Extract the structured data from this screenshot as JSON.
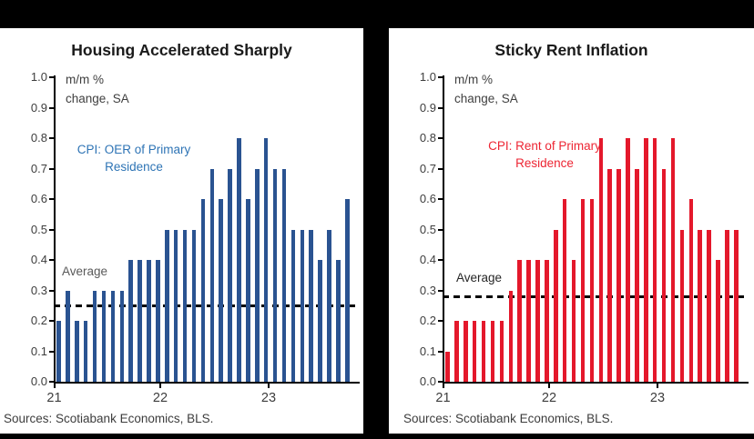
{
  "panel": {
    "background": "#FFFFFF",
    "frame_color": "#000000"
  },
  "chart_data": [
    {
      "type": "bar",
      "title": "Housing Accelerated Sharply",
      "unit_label": "m/m %\nchange, SA",
      "series_label": "CPI: OER of Primary\nResidence",
      "series_name": "CPI: OER of Primary Residence",
      "categories": [
        "2021-01",
        "2021-02",
        "2021-03",
        "2021-04",
        "2021-05",
        "2021-06",
        "2021-07",
        "2021-08",
        "2021-09",
        "2021-10",
        "2021-11",
        "2021-12",
        "2022-01",
        "2022-02",
        "2022-03",
        "2022-04",
        "2022-05",
        "2022-06",
        "2022-07",
        "2022-08",
        "2022-09",
        "2022-10",
        "2022-11",
        "2022-12",
        "2023-01",
        "2023-02",
        "2023-03",
        "2023-04",
        "2023-05",
        "2023-06",
        "2023-07",
        "2023-08",
        "2023-09"
      ],
      "values": [
        0.2,
        0.3,
        0.2,
        0.2,
        0.3,
        0.3,
        0.3,
        0.3,
        0.4,
        0.4,
        0.4,
        0.4,
        0.5,
        0.5,
        0.5,
        0.5,
        0.6,
        0.7,
        0.6,
        0.7,
        0.8,
        0.6,
        0.7,
        0.8,
        0.7,
        0.7,
        0.5,
        0.5,
        0.5,
        0.4,
        0.5,
        0.4,
        0.6
      ],
      "average": 0.25,
      "average_label": "Average",
      "y_axis": {
        "range": [
          0.0,
          1.0
        ],
        "tick_step": 0.1,
        "tick_labels": [
          "1.0",
          "0.9",
          "0.8",
          "0.7",
          "0.6",
          "0.5",
          "0.4",
          "0.3",
          "0.2",
          "0.1",
          "0.0"
        ]
      },
      "x_axis": {
        "tick_labels": [
          "21",
          "22",
          "23"
        ]
      },
      "grid": "off",
      "legend": "none",
      "source": "Sources: Scotiabank Economics, BLS.",
      "colors": {
        "bar": "#2A5391",
        "series_label": "#2E74B5",
        "average_label": "#595959",
        "average_line": "#000000"
      }
    },
    {
      "type": "bar",
      "title": "Sticky Rent Inflation",
      "unit_label": "m/m %\nchange, SA",
      "series_label": "CPI: Rent of Primary\nResidence",
      "series_name": "CPI: Rent of Primary Residence",
      "categories": [
        "2021-01",
        "2021-02",
        "2021-03",
        "2021-04",
        "2021-05",
        "2021-06",
        "2021-07",
        "2021-08",
        "2021-09",
        "2021-10",
        "2021-11",
        "2021-12",
        "2022-01",
        "2022-02",
        "2022-03",
        "2022-04",
        "2022-05",
        "2022-06",
        "2022-07",
        "2022-08",
        "2022-09",
        "2022-10",
        "2022-11",
        "2022-12",
        "2023-01",
        "2023-02",
        "2023-03",
        "2023-04",
        "2023-05",
        "2023-06",
        "2023-07",
        "2023-08",
        "2023-09"
      ],
      "values": [
        0.1,
        0.2,
        0.2,
        0.2,
        0.2,
        0.2,
        0.2,
        0.3,
        0.4,
        0.4,
        0.4,
        0.4,
        0.5,
        0.6,
        0.4,
        0.6,
        0.6,
        0.8,
        0.7,
        0.7,
        0.8,
        0.7,
        0.8,
        0.8,
        0.7,
        0.8,
        0.5,
        0.6,
        0.5,
        0.5,
        0.4,
        0.5,
        0.5
      ],
      "average": 0.28,
      "average_label": "Average",
      "y_axis": {
        "range": [
          0.0,
          1.0
        ],
        "tick_step": 0.1,
        "tick_labels": [
          "1.0",
          "0.9",
          "0.8",
          "0.7",
          "0.6",
          "0.5",
          "0.4",
          "0.3",
          "0.2",
          "0.1",
          "0.0"
        ]
      },
      "x_axis": {
        "tick_labels": [
          "21",
          "22",
          "23"
        ]
      },
      "grid": "off",
      "legend": "none",
      "source": "Sources: Scotiabank Economics, BLS.",
      "colors": {
        "bar": "#E4182B",
        "series_label": "#ED2533",
        "average_label": "#262626",
        "average_line": "#000000"
      }
    }
  ]
}
